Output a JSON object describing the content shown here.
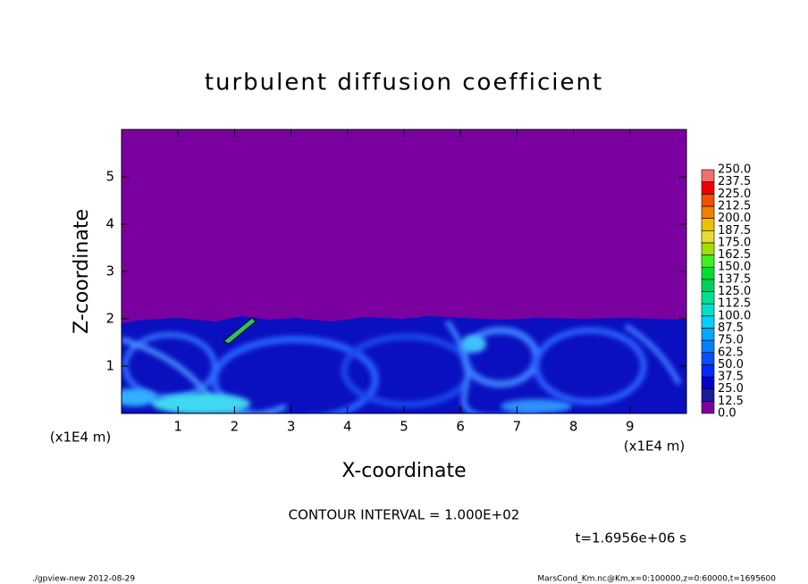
{
  "chart_data": {
    "type": "contour",
    "title": "turbulent diffusion coefficient",
    "x_label": "X-coordinate",
    "y_label": "Z-coordinate",
    "x_unit": "(x1E4 m)",
    "xlim": [
      0,
      10
    ],
    "ylim": [
      0,
      6
    ],
    "xticks": [
      1,
      2,
      3,
      4,
      5,
      6,
      7,
      8,
      9
    ],
    "yticks": [
      1,
      2,
      3,
      4,
      5
    ],
    "levels": [
      {
        "value": 0,
        "label": "0.0"
      },
      {
        "value": 12.5,
        "label": "12.5"
      },
      {
        "value": 25,
        "label": "25.0"
      },
      {
        "value": 37.5,
        "label": "37.5"
      },
      {
        "value": 50,
        "label": "50.0"
      },
      {
        "value": 62.5,
        "label": "62.5"
      },
      {
        "value": 75,
        "label": "75.0"
      },
      {
        "value": 87.5,
        "label": "87.5"
      },
      {
        "value": 100,
        "label": "100.0"
      },
      {
        "value": 112.5,
        "label": "112.5"
      },
      {
        "value": 125,
        "label": "125.0"
      },
      {
        "value": 137.5,
        "label": "137.5"
      },
      {
        "value": 150,
        "label": "150.0"
      },
      {
        "value": 162.5,
        "label": "162.5"
      },
      {
        "value": 175,
        "label": "175.0"
      },
      {
        "value": 187.5,
        "label": "187.5"
      },
      {
        "value": 200,
        "label": "200.0"
      },
      {
        "value": 212.5,
        "label": "212.5"
      },
      {
        "value": 225,
        "label": "225.0"
      },
      {
        "value": 237.5,
        "label": "237.5"
      },
      {
        "value": 250,
        "label": "250.0"
      }
    ],
    "colors": [
      "#7a00a0",
      "#1c1c98",
      "#0000c8",
      "#0028ff",
      "#0050ff",
      "#0080ff",
      "#00a8ff",
      "#00d0ff",
      "#00e0c8",
      "#00e090",
      "#00d060",
      "#00e030",
      "#40f020",
      "#a0e000",
      "#e6dc32",
      "#f0c000",
      "#f08000",
      "#f05000",
      "#f00000",
      "#f07070"
    ],
    "contour_interval": "CONTOUR INTERVAL = 1.000E+02",
    "time_label": "t=1.6956e+06 s",
    "footer_left": "./gpview-new  2012-08-29",
    "footer_right": "MarsCond_Km.nc@Km,x=0:100000,z=0:60000,t=1695600"
  }
}
